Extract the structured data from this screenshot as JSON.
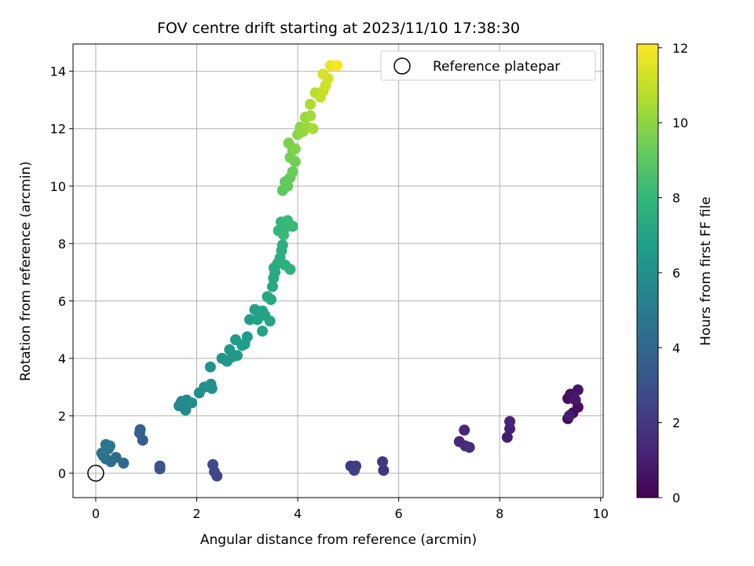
{
  "chart_data": {
    "type": "scatter",
    "title": "FOV centre drift starting at 2023/11/10 17:38:30",
    "xlabel": "Angular distance from reference (arcmin)",
    "ylabel": "Rotation from reference (arcmin)",
    "xlim": [
      -0.45,
      10.05
    ],
    "ylim": [
      -0.85,
      14.95
    ],
    "xticks": [
      0,
      2,
      4,
      6,
      8,
      10
    ],
    "yticks": [
      0,
      2,
      4,
      6,
      8,
      10,
      12,
      14
    ],
    "grid": true,
    "legend": {
      "placement": "upper right",
      "entries": [
        "Reference platepar"
      ]
    },
    "colorbar": {
      "label": "Hours from first FF file",
      "colormap": "viridis",
      "range": [
        0,
        12.1
      ],
      "ticks": [
        0,
        2,
        4,
        6,
        8,
        10,
        12
      ]
    },
    "reference_point": {
      "x": 0,
      "y": 0,
      "marker": "open-circle"
    },
    "points": [
      {
        "x": 9.35,
        "y": 1.9,
        "c": 0.2
      },
      {
        "x": 9.45,
        "y": 2.1,
        "c": 0.3
      },
      {
        "x": 9.55,
        "y": 2.3,
        "c": 0.4
      },
      {
        "x": 9.35,
        "y": 2.6,
        "c": 0.5
      },
      {
        "x": 9.4,
        "y": 2.75,
        "c": 0.6
      },
      {
        "x": 9.55,
        "y": 2.9,
        "c": 0.7
      },
      {
        "x": 9.5,
        "y": 2.55,
        "c": 0.8
      },
      {
        "x": 9.38,
        "y": 2.0,
        "c": 0.9
      },
      {
        "x": 8.15,
        "y": 1.25,
        "c": 1.0
      },
      {
        "x": 8.2,
        "y": 1.55,
        "c": 1.1
      },
      {
        "x": 8.2,
        "y": 1.8,
        "c": 1.2
      },
      {
        "x": 7.3,
        "y": 1.5,
        "c": 1.3
      },
      {
        "x": 7.2,
        "y": 1.1,
        "c": 1.4
      },
      {
        "x": 7.32,
        "y": 0.95,
        "c": 1.5
      },
      {
        "x": 7.4,
        "y": 0.9,
        "c": 1.6
      },
      {
        "x": 5.7,
        "y": 0.1,
        "c": 1.8
      },
      {
        "x": 5.68,
        "y": 0.4,
        "c": 1.9
      },
      {
        "x": 5.15,
        "y": 0.25,
        "c": 2.0
      },
      {
        "x": 5.05,
        "y": 0.25,
        "c": 2.1
      },
      {
        "x": 5.12,
        "y": 0.1,
        "c": 2.2
      },
      {
        "x": 2.4,
        "y": -0.1,
        "c": 2.5
      },
      {
        "x": 2.35,
        "y": 0.05,
        "c": 2.6
      },
      {
        "x": 2.32,
        "y": 0.3,
        "c": 2.7
      },
      {
        "x": 1.27,
        "y": 0.25,
        "c": 3.1
      },
      {
        "x": 1.27,
        "y": 0.15,
        "c": 3.2
      },
      {
        "x": 0.93,
        "y": 1.15,
        "c": 3.6
      },
      {
        "x": 0.87,
        "y": 1.4,
        "c": 3.65
      },
      {
        "x": 0.88,
        "y": 1.52,
        "c": 3.7
      },
      {
        "x": 0.55,
        "y": 0.35,
        "c": 4.1
      },
      {
        "x": 0.4,
        "y": 0.55,
        "c": 4.2
      },
      {
        "x": 0.3,
        "y": 0.4,
        "c": 4.3
      },
      {
        "x": 0.2,
        "y": 0.5,
        "c": 4.4
      },
      {
        "x": 0.12,
        "y": 0.7,
        "c": 4.5
      },
      {
        "x": 0.15,
        "y": 0.6,
        "c": 4.55
      },
      {
        "x": 0.25,
        "y": 0.85,
        "c": 4.6
      },
      {
        "x": 0.2,
        "y": 1.0,
        "c": 4.7
      },
      {
        "x": 0.28,
        "y": 0.95,
        "c": 4.75
      },
      {
        "x": 1.65,
        "y": 2.35,
        "c": 5.6
      },
      {
        "x": 1.7,
        "y": 2.5,
        "c": 5.7
      },
      {
        "x": 1.78,
        "y": 2.2,
        "c": 5.75
      },
      {
        "x": 1.8,
        "y": 2.55,
        "c": 5.8
      },
      {
        "x": 1.9,
        "y": 2.45,
        "c": 5.9
      },
      {
        "x": 2.05,
        "y": 2.8,
        "c": 6.0
      },
      {
        "x": 2.15,
        "y": 3.0,
        "c": 6.05
      },
      {
        "x": 2.28,
        "y": 3.1,
        "c": 6.1
      },
      {
        "x": 2.3,
        "y": 2.95,
        "c": 6.15
      },
      {
        "x": 2.27,
        "y": 3.7,
        "c": 6.2
      },
      {
        "x": 2.5,
        "y": 4.0,
        "c": 6.3
      },
      {
        "x": 2.6,
        "y": 3.9,
        "c": 6.35
      },
      {
        "x": 2.65,
        "y": 4.3,
        "c": 6.4
      },
      {
        "x": 2.7,
        "y": 4.05,
        "c": 6.45
      },
      {
        "x": 2.8,
        "y": 4.1,
        "c": 6.5
      },
      {
        "x": 2.77,
        "y": 4.65,
        "c": 6.55
      },
      {
        "x": 2.95,
        "y": 4.5,
        "c": 6.6
      },
      {
        "x": 3.0,
        "y": 4.75,
        "c": 6.65
      },
      {
        "x": 2.9,
        "y": 4.45,
        "c": 6.7
      },
      {
        "x": 3.05,
        "y": 5.35,
        "c": 6.8
      },
      {
        "x": 3.15,
        "y": 5.7,
        "c": 6.85
      },
      {
        "x": 3.2,
        "y": 5.35,
        "c": 6.9
      },
      {
        "x": 3.3,
        "y": 5.65,
        "c": 6.95
      },
      {
        "x": 3.35,
        "y": 5.5,
        "c": 7.0
      },
      {
        "x": 3.3,
        "y": 4.95,
        "c": 7.05
      },
      {
        "x": 3.45,
        "y": 5.3,
        "c": 7.1
      },
      {
        "x": 3.4,
        "y": 6.15,
        "c": 7.15
      },
      {
        "x": 3.47,
        "y": 6.05,
        "c": 7.2
      },
      {
        "x": 3.5,
        "y": 6.5,
        "c": 7.25
      },
      {
        "x": 3.52,
        "y": 6.8,
        "c": 7.3
      },
      {
        "x": 3.55,
        "y": 7.0,
        "c": 7.35
      },
      {
        "x": 3.53,
        "y": 7.15,
        "c": 7.4
      },
      {
        "x": 3.6,
        "y": 7.3,
        "c": 7.45
      },
      {
        "x": 3.65,
        "y": 7.5,
        "c": 7.5
      },
      {
        "x": 3.68,
        "y": 7.75,
        "c": 7.55
      },
      {
        "x": 3.7,
        "y": 7.95,
        "c": 7.6
      },
      {
        "x": 3.75,
        "y": 7.25,
        "c": 7.65
      },
      {
        "x": 3.85,
        "y": 7.1,
        "c": 7.7
      },
      {
        "x": 3.62,
        "y": 8.45,
        "c": 7.9
      },
      {
        "x": 3.67,
        "y": 8.75,
        "c": 8.0
      },
      {
        "x": 3.75,
        "y": 8.55,
        "c": 8.05
      },
      {
        "x": 3.8,
        "y": 8.8,
        "c": 8.1
      },
      {
        "x": 3.9,
        "y": 8.6,
        "c": 8.15
      },
      {
        "x": 3.72,
        "y": 8.3,
        "c": 8.2
      },
      {
        "x": 3.7,
        "y": 9.85,
        "c": 9.0
      },
      {
        "x": 3.75,
        "y": 10.15,
        "c": 9.1
      },
      {
        "x": 3.8,
        "y": 10.0,
        "c": 9.15
      },
      {
        "x": 3.85,
        "y": 10.3,
        "c": 9.2
      },
      {
        "x": 3.9,
        "y": 10.5,
        "c": 9.3
      },
      {
        "x": 3.95,
        "y": 10.85,
        "c": 9.4
      },
      {
        "x": 3.85,
        "y": 11.0,
        "c": 9.5
      },
      {
        "x": 3.9,
        "y": 11.25,
        "c": 9.6
      },
      {
        "x": 3.82,
        "y": 11.5,
        "c": 9.7
      },
      {
        "x": 3.95,
        "y": 11.3,
        "c": 9.8
      },
      {
        "x": 4.0,
        "y": 11.8,
        "c": 9.9
      },
      {
        "x": 4.05,
        "y": 12.05,
        "c": 10.0
      },
      {
        "x": 4.1,
        "y": 11.9,
        "c": 10.1
      },
      {
        "x": 4.15,
        "y": 12.4,
        "c": 10.2
      },
      {
        "x": 4.2,
        "y": 12.05,
        "c": 10.3
      },
      {
        "x": 4.25,
        "y": 12.45,
        "c": 10.4
      },
      {
        "x": 4.3,
        "y": 12.0,
        "c": 10.5
      },
      {
        "x": 4.25,
        "y": 12.85,
        "c": 10.6
      },
      {
        "x": 4.35,
        "y": 13.25,
        "c": 10.8
      },
      {
        "x": 4.45,
        "y": 13.1,
        "c": 11.0
      },
      {
        "x": 4.5,
        "y": 13.3,
        "c": 11.1
      },
      {
        "x": 4.55,
        "y": 13.5,
        "c": 11.2
      },
      {
        "x": 4.6,
        "y": 13.75,
        "c": 11.3
      },
      {
        "x": 4.5,
        "y": 13.9,
        "c": 11.4
      },
      {
        "x": 4.65,
        "y": 14.2,
        "c": 11.7
      },
      {
        "x": 4.78,
        "y": 14.2,
        "c": 12.0
      }
    ]
  }
}
